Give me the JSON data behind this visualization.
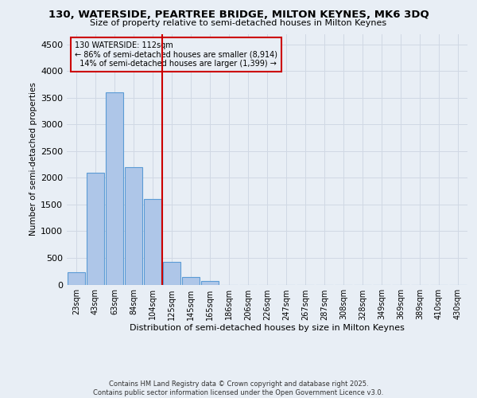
{
  "title_line1": "130, WATERSIDE, PEARTREE BRIDGE, MILTON KEYNES, MK6 3DQ",
  "title_line2": "Size of property relative to semi-detached houses in Milton Keynes",
  "xlabel": "Distribution of semi-detached houses by size in Milton Keynes",
  "ylabel": "Number of semi-detached properties",
  "footnote": "Contains HM Land Registry data © Crown copyright and database right 2025.\nContains public sector information licensed under the Open Government Licence v3.0.",
  "bar_labels": [
    "23sqm",
    "43sqm",
    "63sqm",
    "84sqm",
    "104sqm",
    "125sqm",
    "145sqm",
    "165sqm",
    "186sqm",
    "206sqm",
    "226sqm",
    "247sqm",
    "267sqm",
    "287sqm",
    "308sqm",
    "328sqm",
    "349sqm",
    "369sqm",
    "389sqm",
    "410sqm",
    "430sqm"
  ],
  "bar_values": [
    230,
    2100,
    3600,
    2200,
    1600,
    430,
    140,
    60,
    0,
    0,
    0,
    0,
    0,
    0,
    0,
    0,
    0,
    0,
    0,
    0,
    0
  ],
  "bar_color": "#aec6e8",
  "bar_edge_color": "#5b9bd5",
  "grid_color": "#d0d8e4",
  "background_color": "#e8eef5",
  "annotation_text": "130 WATERSIDE: 112sqm\n← 86% of semi-detached houses are smaller (8,914)\n  14% of semi-detached houses are larger (1,399) →",
  "vline_x_index": 4.5,
  "vline_color": "#cc0000",
  "annotation_box_edge_color": "#cc0000",
  "ylim": [
    0,
    4700
  ],
  "yticks": [
    0,
    500,
    1000,
    1500,
    2000,
    2500,
    3000,
    3500,
    4000,
    4500
  ]
}
